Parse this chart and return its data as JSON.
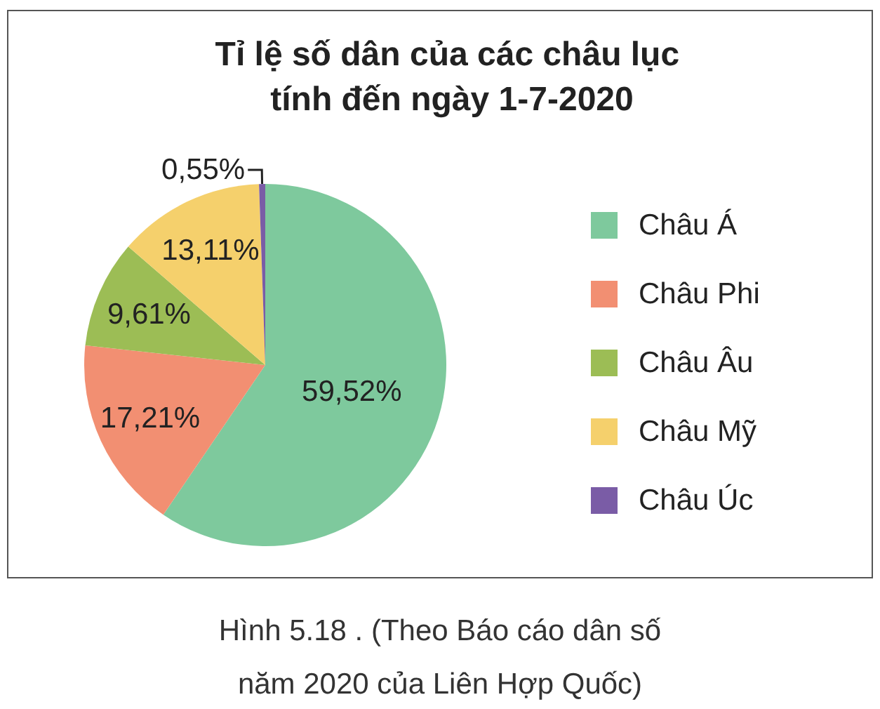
{
  "chart_data": {
    "type": "pie",
    "title": "Tỉ lệ số dân của các châu lục tính đến ngày 1-7-2020",
    "categories": [
      "Châu Á",
      "Châu Phi",
      "Châu Âu",
      "Châu Mỹ",
      "Châu Úc"
    ],
    "values": [
      59.52,
      17.21,
      9.61,
      13.11,
      0.55
    ],
    "colors": [
      "#7ec99d",
      "#f28f72",
      "#9cbd55",
      "#f5d06c",
      "#7a5ca6"
    ],
    "value_labels": [
      "59,52%",
      "17,21%",
      "9,61%",
      "13,11%",
      "0,55%"
    ],
    "legend": "right",
    "annotations": [
      "Hình 5.18 . (Theo Báo cáo dân số năm 2020 của Liên Hợp Quốc)"
    ]
  }
}
